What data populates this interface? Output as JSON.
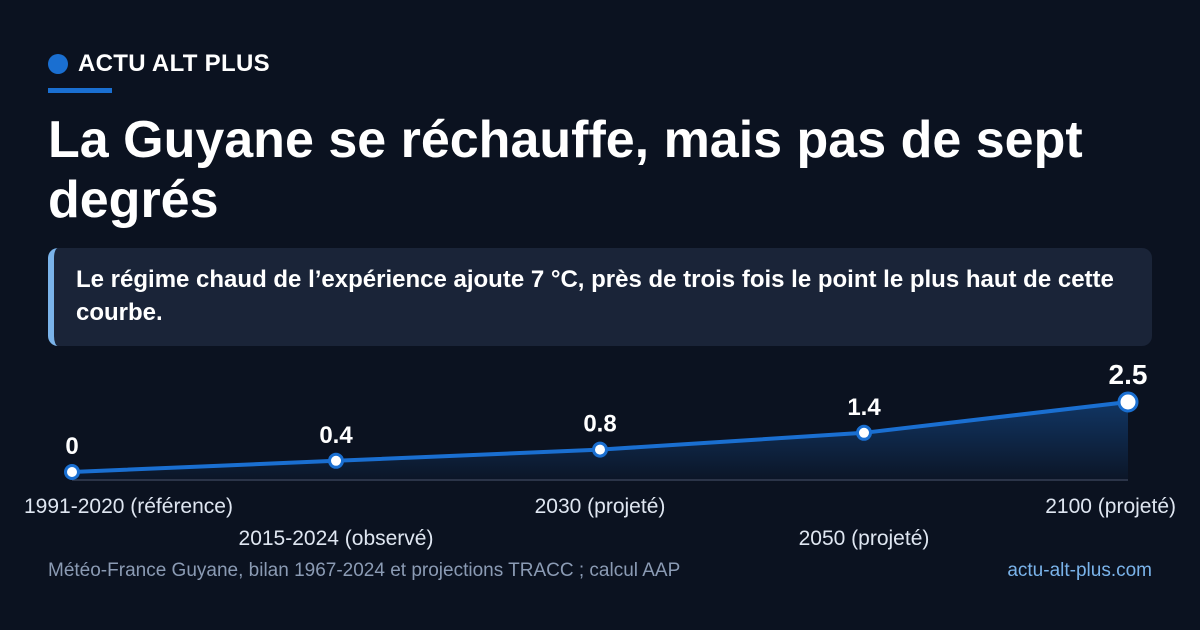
{
  "brand": {
    "name": "ACTU ALT PLUS",
    "accent_color": "#1a6fd1"
  },
  "headline": "La Guyane se réchauffe, mais pas de sept degrés",
  "callout": "Le régime chaud de l’expérience ajoute 7 °C, près de trois fois le point le plus haut de cette courbe.",
  "chart_data": {
    "type": "area",
    "categories": [
      "1991-2020 (référence)",
      "2015-2024 (observé)",
      "2030 (projeté)",
      "2050 (projeté)",
      "2100 (projeté)"
    ],
    "values": [
      0,
      0.4,
      0.8,
      1.4,
      2.5
    ],
    "value_labels": [
      "0",
      "0.4",
      "0.8",
      "1.4",
      "2.5"
    ],
    "ylim": [
      0,
      2.5
    ],
    "grid": false,
    "line_color": "#1a6fd1"
  },
  "footer": {
    "source": "Météo-France Guyane, bilan 1967-2024 et projections TRACC ; calcul AAP",
    "site": "actu-alt-plus.com"
  }
}
